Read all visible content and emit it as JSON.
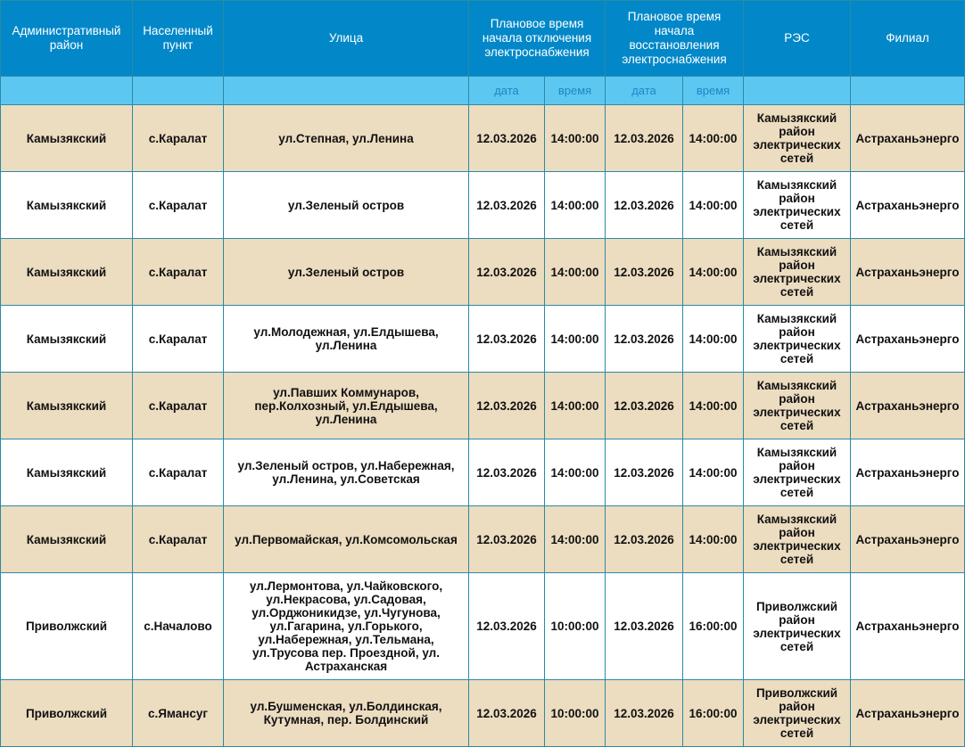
{
  "headers": {
    "district": "Административный район",
    "settlement": "Населенный пункт",
    "street": "Улица",
    "off_time": "Плановое время начала отключения электроснабжения",
    "restore_time": "Плановое время начала восстановления электроснабжения",
    "res": "РЭС",
    "branch": "Филиал"
  },
  "subheaders": {
    "date": "дата",
    "time": "время"
  },
  "colors": {
    "header": "#0288c8",
    "subheader": "#5cc8f2",
    "row_alt": "#ecdcc0",
    "border": "#2b8aa6"
  },
  "rows": [
    {
      "district": "Камызякский",
      "settlement": "с.Каралат",
      "street": "ул.Степная, ул.Ленина",
      "off_date": "12.03.2026",
      "off_time": "14:00:00",
      "on_date": "12.03.2026",
      "on_time": "14:00:00",
      "res": "Камызякский район электрических сетей",
      "branch": "Астраханьэнерго"
    },
    {
      "district": "Камызякский",
      "settlement": "с.Каралат",
      "street": "ул.Зеленый остров",
      "off_date": "12.03.2026",
      "off_time": "14:00:00",
      "on_date": "12.03.2026",
      "on_time": "14:00:00",
      "res": "Камызякский район электрических сетей",
      "branch": "Астраханьэнерго"
    },
    {
      "district": "Камызякский",
      "settlement": "с.Каралат",
      "street": "ул.Зеленый остров",
      "off_date": "12.03.2026",
      "off_time": "14:00:00",
      "on_date": "12.03.2026",
      "on_time": "14:00:00",
      "res": "Камызякский район электрических сетей",
      "branch": "Астраханьэнерго"
    },
    {
      "district": "Камызякский",
      "settlement": "с.Каралат",
      "street": "ул.Молодежная, ул.Елдышева, ул.Ленина",
      "off_date": "12.03.2026",
      "off_time": "14:00:00",
      "on_date": "12.03.2026",
      "on_time": "14:00:00",
      "res": "Камызякский район электрических сетей",
      "branch": "Астраханьэнерго"
    },
    {
      "district": "Камызякский",
      "settlement": "с.Каралат",
      "street": "ул.Павших Коммунаров, пер.Колхозный, ул.Елдышева, ул.Ленина",
      "off_date": "12.03.2026",
      "off_time": "14:00:00",
      "on_date": "12.03.2026",
      "on_time": "14:00:00",
      "res": "Камызякский район электрических сетей",
      "branch": "Астраханьэнерго"
    },
    {
      "district": "Камызякский",
      "settlement": "с.Каралат",
      "street": "ул.Зеленый остров, ул.Набережная, ул.Ленина, ул.Советская",
      "off_date": "12.03.2026",
      "off_time": "14:00:00",
      "on_date": "12.03.2026",
      "on_time": "14:00:00",
      "res": "Камызякский район электрических сетей",
      "branch": "Астраханьэнерго"
    },
    {
      "district": "Камызякский",
      "settlement": "с.Каралат",
      "street": "ул.Первомайская, ул.Комсомольская",
      "off_date": "12.03.2026",
      "off_time": "14:00:00",
      "on_date": "12.03.2026",
      "on_time": "14:00:00",
      "res": "Камызякский район электрических сетей",
      "branch": "Астраханьэнерго"
    },
    {
      "district": "Приволжский",
      "settlement": "с.Началово",
      "street": "ул.Лермонтова, ул.Чайковского, ул.Некрасова, ул.Садовая, ул.Орджоникидзе, ул.Чугунова, ул.Гагарина, ул.Горького, ул.Набережная, ул.Тельмана, ул.Трусова пер. Проездной, ул. Астраханская",
      "off_date": "12.03.2026",
      "off_time": "10:00:00",
      "on_date": "12.03.2026",
      "on_time": "16:00:00",
      "res": "Приволжский район электрических сетей",
      "branch": "Астраханьэнерго"
    },
    {
      "district": "Приволжский",
      "settlement": "с.Ямансуг",
      "street": "ул.Бушменская, ул.Болдинская, Кутумная, пер. Болдинский",
      "off_date": "12.03.2026",
      "off_time": "10:00:00",
      "on_date": "12.03.2026",
      "on_time": "16:00:00",
      "res": "Приволжский район электрических сетей",
      "branch": "Астраханьэнерго"
    }
  ]
}
